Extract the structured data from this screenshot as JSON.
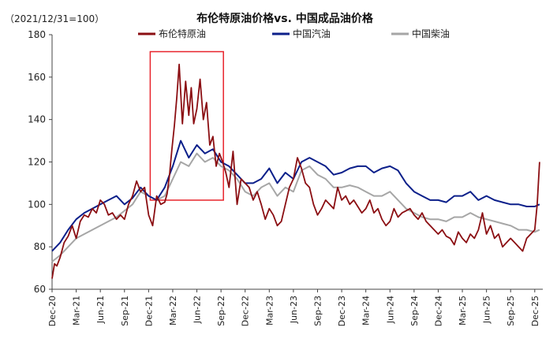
{
  "chart_data": {
    "type": "line",
    "title": "布伦特原油价格vs. 中国成品油价格",
    "note": "（2021/12/31=100）",
    "ylim": [
      60,
      180
    ],
    "yticks": [
      60,
      80,
      100,
      120,
      140,
      160,
      180
    ],
    "x_labels": [
      "Dec-20",
      "Mar-21",
      "Jun-21",
      "Sep-21",
      "Dec-21",
      "Mar-22",
      "Jun-22",
      "Sep-22",
      "Dec-22",
      "Mar-23",
      "Jun-23",
      "Sep-23",
      "Dec-23",
      "Mar-24",
      "Jun-24",
      "Sep-24",
      "Dec-24",
      "Mar-25",
      "Jun-25",
      "Sep-25",
      "Dec-25"
    ],
    "highlight": {
      "x_start": 12.2,
      "x_end": 21.3,
      "y_start": 102,
      "y_end": 172,
      "color": "#e8242c"
    },
    "series": [
      {
        "name": "布伦特原油",
        "color": "#8b0e12",
        "x": [
          0,
          0.3,
          0.6,
          1,
          1.5,
          2,
          2.5,
          3,
          3.5,
          4,
          4.5,
          5,
          5.5,
          6,
          6.5,
          7,
          7.5,
          8,
          8.5,
          9,
          9.5,
          10,
          10.5,
          11,
          11.5,
          12,
          12.5,
          13,
          13.5,
          14,
          14.3,
          14.6,
          14.9,
          15.2,
          15.5,
          15.8,
          16.2,
          16.6,
          17,
          17.3,
          17.6,
          18,
          18.4,
          18.8,
          19.2,
          19.6,
          20,
          20.4,
          20.8,
          21.2,
          21.6,
          22,
          22.5,
          23,
          23.5,
          24,
          24.5,
          25,
          25.5,
          26,
          26.5,
          27,
          27.5,
          28,
          28.5,
          29,
          29.5,
          30,
          30.5,
          31,
          31.5,
          32,
          32.5,
          33,
          33.5,
          34,
          34.5,
          35,
          35.5,
          36,
          36.5,
          37,
          37.5,
          38,
          38.5,
          39,
          39.5,
          40,
          40.5,
          41,
          41.5,
          42,
          42.5,
          43,
          43.5,
          44,
          44.5,
          45,
          45.5,
          46,
          46.5,
          47,
          47.5,
          48,
          48.5,
          49,
          49.5,
          50,
          50.5,
          51,
          51.5,
          52,
          52.5,
          53,
          53.5,
          54,
          54.5,
          55,
          55.5,
          56,
          56.5,
          57,
          57.5,
          58,
          58.5,
          59,
          59.5,
          60,
          60.3,
          60.6
        ],
        "values": [
          65,
          72,
          71,
          75,
          82,
          85,
          90,
          84,
          92,
          95,
          94,
          98,
          96,
          102,
          100,
          95,
          96,
          93,
          95,
          93,
          100,
          104,
          111,
          106,
          108,
          95,
          90,
          104,
          100,
          101,
          105,
          114,
          126,
          137,
          150,
          166,
          138,
          158,
          142,
          155,
          138,
          145,
          159,
          140,
          148,
          128,
          132,
          118,
          124,
          120,
          115,
          108,
          125,
          100,
          112,
          110,
          108,
          102,
          106,
          100,
          93,
          98,
          95,
          90,
          92,
          100,
          108,
          112,
          122,
          117,
          110,
          108,
          100,
          95,
          98,
          102,
          100,
          98,
          108,
          102,
          104,
          100,
          102,
          99,
          96,
          98,
          102,
          96,
          98,
          93,
          90,
          92,
          98,
          94,
          96,
          97,
          98,
          95,
          93,
          96,
          92,
          90,
          88,
          86,
          88,
          85,
          84,
          81,
          87,
          84,
          82,
          86,
          84,
          88,
          96,
          86,
          90,
          84,
          86,
          80,
          82,
          84,
          82,
          80,
          78,
          84,
          86,
          88,
          100,
          120
        ]
      },
      {
        "name": "中国汽油",
        "color": "#0b1f8a",
        "x": [
          0,
          1,
          2,
          3,
          4,
          5,
          6,
          7,
          8,
          9,
          10,
          11,
          12,
          13,
          14,
          15,
          16,
          17,
          18,
          19,
          20,
          21,
          22,
          23,
          24,
          25,
          26,
          27,
          28,
          29,
          30,
          31,
          32,
          33,
          34,
          35,
          36,
          37,
          38,
          39,
          40,
          41,
          42,
          43,
          44,
          45,
          46,
          47,
          48,
          49,
          50,
          51,
          52,
          53,
          54,
          55,
          56,
          57,
          58,
          59,
          60,
          60.6
        ],
        "values": [
          78,
          82,
          88,
          93,
          96,
          98,
          100,
          102,
          104,
          100,
          103,
          108,
          104,
          102,
          108,
          118,
          130,
          122,
          128,
          124,
          126,
          120,
          118,
          114,
          110,
          110,
          112,
          117,
          110,
          115,
          112,
          120,
          122,
          120,
          118,
          114,
          115,
          117,
          118,
          118,
          115,
          117,
          118,
          116,
          110,
          106,
          104,
          102,
          102,
          101,
          104,
          104,
          106,
          102,
          104,
          102,
          101,
          100,
          100,
          99,
          99,
          100
        ]
      },
      {
        "name": "中国柴油",
        "color": "#a6a6a6",
        "x": [
          0,
          1,
          2,
          3,
          4,
          5,
          6,
          7,
          8,
          9,
          10,
          11,
          12,
          13,
          14,
          15,
          16,
          17,
          18,
          19,
          20,
          21,
          22,
          23,
          24,
          25,
          26,
          27,
          28,
          29,
          30,
          31,
          32,
          33,
          34,
          35,
          36,
          37,
          38,
          39,
          40,
          41,
          42,
          43,
          44,
          45,
          46,
          47,
          48,
          49,
          50,
          51,
          52,
          53,
          54,
          55,
          56,
          57,
          58,
          59,
          60,
          60.6
        ],
        "values": [
          73,
          76,
          80,
          84,
          86,
          88,
          90,
          92,
          94,
          97,
          100,
          106,
          104,
          102,
          104,
          112,
          120,
          118,
          124,
          120,
          122,
          118,
          116,
          112,
          106,
          104,
          108,
          110,
          104,
          108,
          106,
          116,
          118,
          114,
          112,
          108,
          108,
          109,
          108,
          106,
          104,
          104,
          106,
          102,
          98,
          96,
          94,
          93,
          93,
          92,
          94,
          94,
          96,
          94,
          93,
          92,
          91,
          90,
          88,
          88,
          87,
          88
        ]
      }
    ]
  }
}
